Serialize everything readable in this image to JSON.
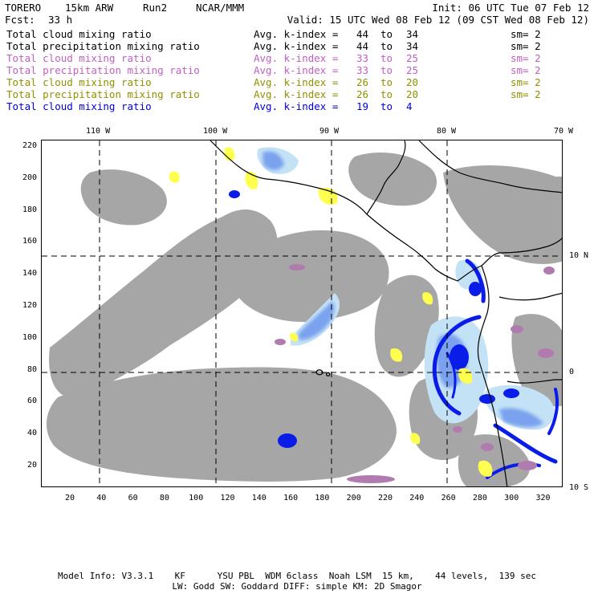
{
  "header": {
    "model": "TORERO",
    "resolution": "15km ARW",
    "run": "Run2",
    "org": "NCAR/MMM",
    "init": "Init: 06 UTC Tue 07 Feb 12",
    "fcst_label": "Fcst:",
    "fcst_value": "33 h",
    "valid": "Valid: 15 UTC Wed 08 Feb 12 (09 CST Wed 08 Feb 12)"
  },
  "legend": [
    {
      "field": "Total cloud mixing ratio",
      "kindex": "Avg. k-index =",
      "from": "44",
      "to_label": "to",
      "to": "34",
      "sm": "sm= 2",
      "color": "#000000"
    },
    {
      "field": "Total precipitation mixing ratio",
      "kindex": "Avg. k-index =",
      "from": "44",
      "to_label": "to",
      "to": "34",
      "sm": "sm= 2",
      "color": "#000000"
    },
    {
      "field": "Total cloud mixing ratio",
      "kindex": "Avg. k-index =",
      "from": "33",
      "to_label": "to",
      "to": "25",
      "sm": "sm= 2",
      "color": "#c060c0"
    },
    {
      "field": "Total precipitation mixing ratio",
      "kindex": "Avg. k-index =",
      "from": "33",
      "to_label": "to",
      "to": "25",
      "sm": "sm= 2",
      "color": "#c060c0"
    },
    {
      "field": "Total cloud mixing ratio",
      "kindex": "Avg. k-index =",
      "from": "26",
      "to_label": "to",
      "to": "20",
      "sm": "sm= 2",
      "color": "#909000"
    },
    {
      "field": "Total precipitation mixing ratio",
      "kindex": "Avg. k-index =",
      "from": "26",
      "to_label": "to",
      "to": "20",
      "sm": "sm= 2",
      "color": "#909000"
    },
    {
      "field": "Total cloud mixing ratio",
      "kindex": "Avg. k-index =",
      "from": "19",
      "to_label": "to",
      "to": "4",
      "sm": "",
      "color": "#0000dd"
    }
  ],
  "axes": {
    "lon_labels": [
      "110 W",
      "100 W",
      "90 W",
      "80 W",
      "70 W"
    ],
    "lat_labels": [
      "10 N",
      "0",
      "10 S"
    ],
    "x_ticks": [
      "20",
      "40",
      "60",
      "80",
      "100",
      "120",
      "140",
      "160",
      "180",
      "200",
      "220",
      "240",
      "260",
      "280",
      "300",
      "320"
    ],
    "y_ticks": [
      "220",
      "200",
      "180",
      "160",
      "140",
      "120",
      "100",
      "80",
      "60",
      "40",
      "20"
    ]
  },
  "colors": {
    "cloud_gray": "#a6a6a6",
    "light_blue": "#c4e2f6",
    "mid_blue": "#7aa2ee",
    "deep_blue": "#0a1ce8",
    "yellow": "#ffff50",
    "purple": "#b07cb0",
    "coast": "#000000",
    "grid": "#000000"
  },
  "footer": {
    "line1": "Model Info: V3.3.1    KF      YSU PBL  WDM 6class  Noah LSM  15 km,    44 levels,  139 sec",
    "line2": "LW: Godd SW: Goddard DIFF: simple KM: 2D Smagor"
  }
}
